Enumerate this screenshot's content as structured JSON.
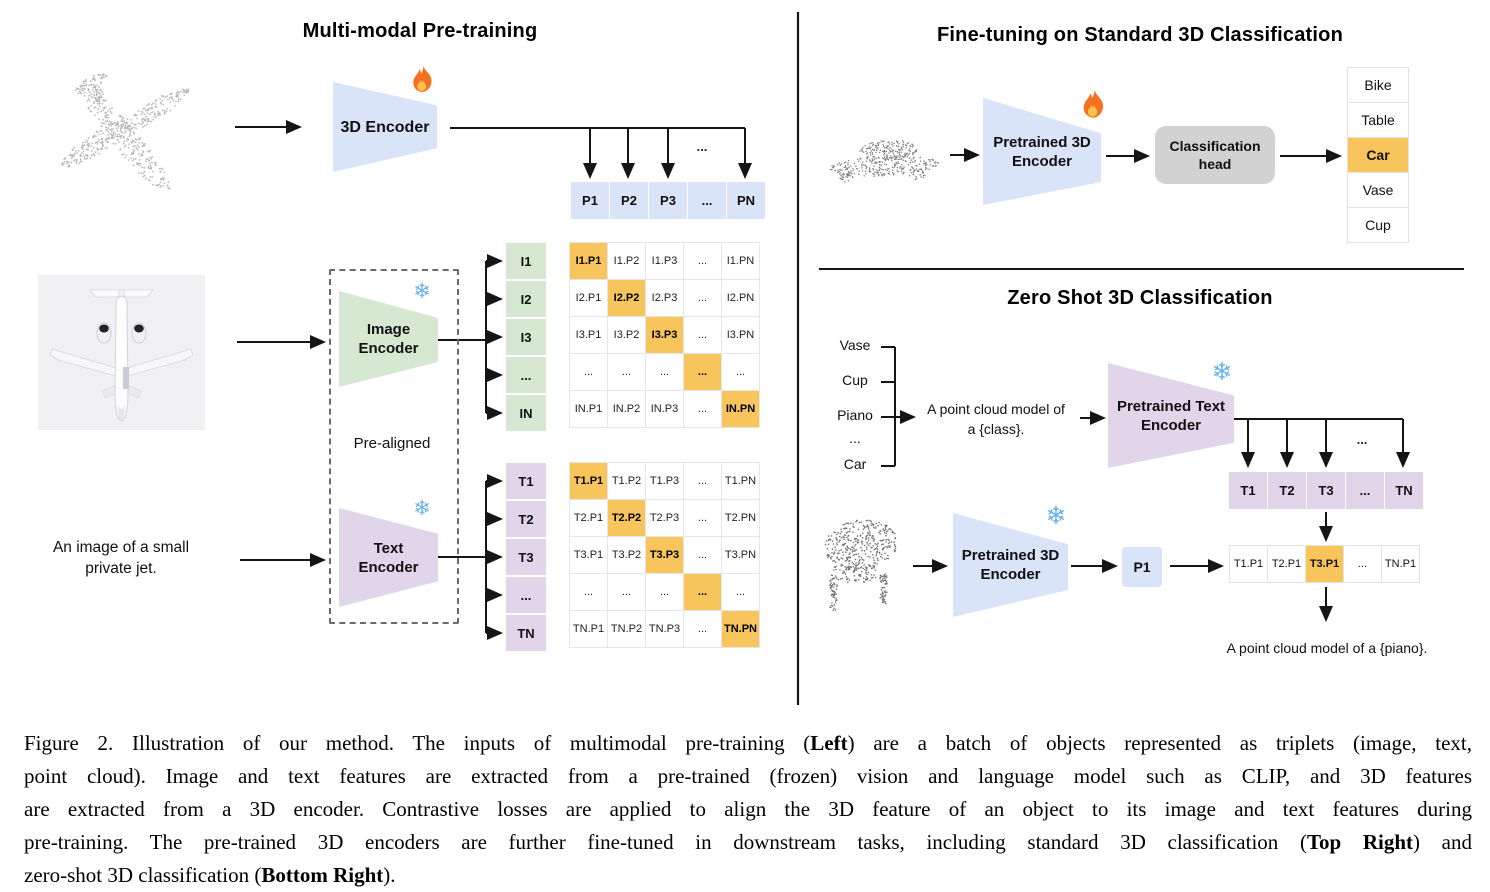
{
  "colors": {
    "blue": "#d9e4f8",
    "green": "#d7e8d2",
    "purple": "#e1d5ea",
    "orange": "#f8c55c",
    "head_gray": "#d2d2d2",
    "wire": "#151515"
  },
  "icons": {
    "snowflake_glyph": "❄",
    "fire_icon": "fire-icon",
    "snowflake_icon": "snowflake-icon"
  },
  "left_panel": {
    "title": "Multi-modal Pre-training",
    "encoder_3d_label": [
      "3D Encoder"
    ],
    "p_row": [
      "P1",
      "P2",
      "P3",
      "...",
      "PN"
    ],
    "dots_label": "...",
    "image_encoder_label": [
      "Image",
      "Encoder"
    ],
    "text_encoder_label": [
      "Text",
      "Encoder"
    ],
    "prealigned_label": "Pre-aligned",
    "text_input": [
      "An image of a small",
      "private jet."
    ],
    "image_rows": [
      "I1",
      "I2",
      "I3",
      "...",
      "IN"
    ],
    "image_matrix": [
      [
        "I1.P1",
        "I1.P2",
        "I1.P3",
        "...",
        "I1.PN"
      ],
      [
        "I2.P1",
        "I2.P2",
        "I2.P3",
        "...",
        "I2.PN"
      ],
      [
        "I3.P1",
        "I3.P2",
        "I3.P3",
        "...",
        "I3.PN"
      ],
      [
        "...",
        "...",
        "...",
        "...",
        "..."
      ],
      [
        "IN.P1",
        "IN.P2",
        "IN.P3",
        "...",
        "IN.PN"
      ]
    ],
    "text_rows": [
      "T1",
      "T2",
      "T3",
      "...",
      "TN"
    ],
    "text_matrix": [
      [
        "T1.P1",
        "T1.P2",
        "T1.P3",
        "...",
        "T1.PN"
      ],
      [
        "T2.P1",
        "T2.P2",
        "T2.P3",
        "...",
        "T2.PN"
      ],
      [
        "T3.P1",
        "T3.P2",
        "T3.P3",
        "...",
        "T3.PN"
      ],
      [
        "...",
        "...",
        "...",
        "...",
        "..."
      ],
      [
        "TN.P1",
        "TN.P2",
        "TN.P3",
        "...",
        "TN.PN"
      ]
    ]
  },
  "top_right": {
    "title": "Fine-tuning on Standard 3D Classification",
    "encoder_label": [
      "Pretrained 3D",
      "Encoder"
    ],
    "head_label": [
      "Classification",
      "head"
    ],
    "classes": [
      "Bike",
      "Table",
      "Car",
      "Vase",
      "Cup"
    ],
    "highlighted_class": "Car"
  },
  "bottom_right": {
    "title": "Zero Shot 3D Classification",
    "class_list": [
      "Vase",
      "Cup",
      "Piano",
      "...",
      "Car"
    ],
    "prompt": [
      "A point cloud model of",
      "a {class}."
    ],
    "text_encoder_label": [
      "Pretrained Text",
      "Encoder"
    ],
    "t_row": [
      "T1",
      "T2",
      "T3",
      "...",
      "TN"
    ],
    "dots_label": "...",
    "encoder_3d_label": [
      "Pretrained 3D",
      "Encoder"
    ],
    "p1_label": "P1",
    "sim_row": [
      "T1.P1",
      "T2.P1",
      "T3.P1",
      "...",
      "TN.P1"
    ],
    "highlighted_sim": "T3.P1",
    "result_text": "A point cloud model of a {piano}."
  },
  "caption": {
    "lines": [
      [
        {
          "t": "Figure 2. Illustration of our method. The inputs of multimodal pre-training ("
        },
        {
          "t": "Left",
          "b": true
        },
        {
          "t": ") are a batch of objects represented as triplets (image, text,"
        }
      ],
      [
        {
          "t": "point cloud). Image and text features are extracted from a pre-trained (frozen) vision and language model such as CLIP, and 3D features"
        }
      ],
      [
        {
          "t": "are extracted from a 3D encoder. Contrastive losses are applied to align the 3D feature of an object to its image and text features during"
        }
      ],
      [
        {
          "t": "pre-training. The pre-trained 3D encoders are further fine-tuned in downstream tasks, including standard 3D classification ("
        },
        {
          "t": "Top Right",
          "b": true
        },
        {
          "t": ") and"
        }
      ],
      [
        {
          "t": "zero-shot 3D classification ("
        },
        {
          "t": "Bottom Right",
          "b": true
        },
        {
          "t": ")."
        }
      ]
    ]
  }
}
